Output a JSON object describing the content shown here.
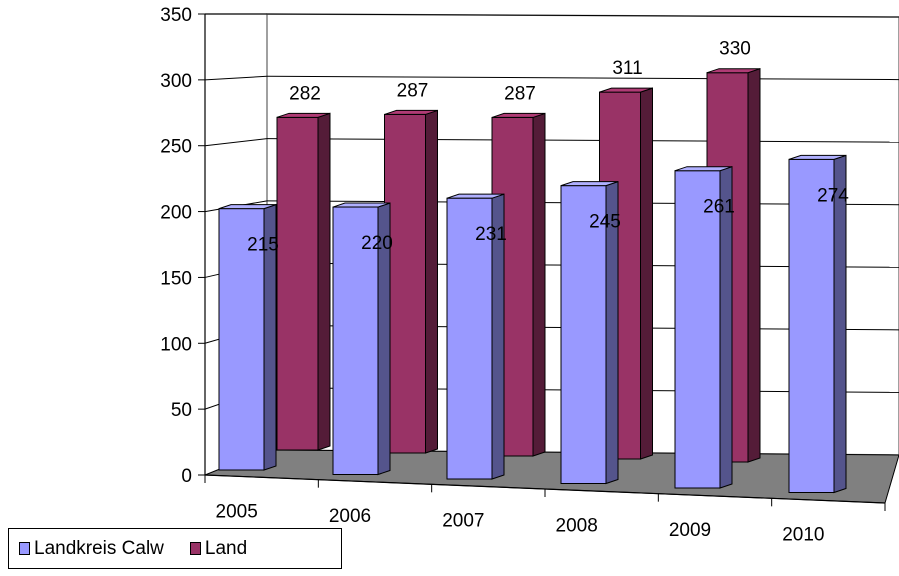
{
  "chart_data": {
    "type": "bar",
    "categories": [
      "2005",
      "2006",
      "2007",
      "2008",
      "2009",
      "2010"
    ],
    "series": [
      {
        "name": "Landkreis Calw",
        "values": [
          215,
          220,
          231,
          245,
          261,
          274
        ],
        "color": "#9999ff"
      },
      {
        "name": "Land",
        "values": [
          282,
          287,
          287,
          311,
          330,
          null
        ],
        "color": "#993366"
      }
    ],
    "y_ticks": [
      "0",
      "50",
      "100",
      "150",
      "200",
      "250",
      "300",
      "350"
    ],
    "ylim": [
      0,
      350
    ],
    "grid": true,
    "style": "3d-clustered",
    "legend_position": "bottom-left"
  }
}
